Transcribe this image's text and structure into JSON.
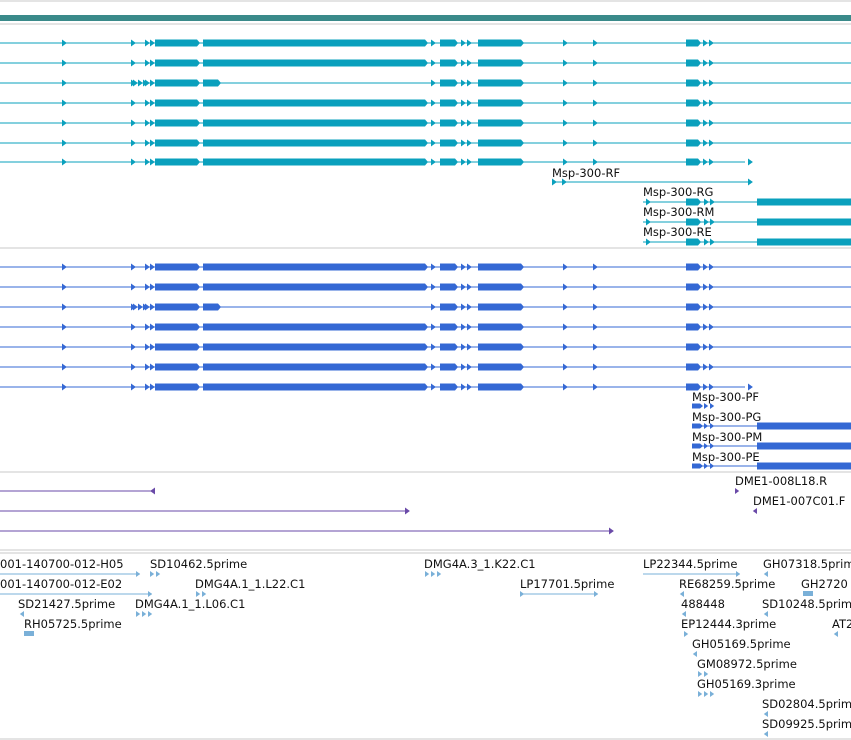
{
  "colors": {
    "teal": "#0aa0bd",
    "teal_bar": "#3a8a8a",
    "blue": "#3468d4",
    "purple": "#6a4aa8",
    "est": "#7ab0d8",
    "divider": "#c8c8c8"
  },
  "gene_track_1": {
    "labels": [
      "Msp-300-RF",
      "Msp-300-RG",
      "Msp-300-RM",
      "Msp-300-RE"
    ]
  },
  "gene_track_2": {
    "labels": [
      "Msp-300-PF",
      "Msp-300-PG",
      "Msp-300-PM",
      "Msp-300-PE"
    ]
  },
  "clone_track": {
    "labels": [
      "DME1-008L18.R",
      "DME1-007C01.F"
    ]
  },
  "est_track": {
    "labels": [
      "001-140700-012-H05",
      "SD10462.5prime",
      "DMG4A.3_1.K22.C1",
      "LP22344.5prime",
      "GH07318.5prim",
      "001-140700-012-E02",
      "DMG4A.1_1.L22.C1",
      "LP17701.5prime",
      "RE68259.5prime",
      "GH2720",
      "SD21427.5prime",
      "DMG4A.1_1.L06.C1",
      "488448",
      "SD10248.5prim",
      "RH05725.5prime",
      "EP12444.3prime",
      "AT2",
      "GH05169.5prime",
      "GM08972.5prime",
      "GH05169.3prime",
      "SD02804.5prim",
      "SD09925.5prim"
    ]
  }
}
